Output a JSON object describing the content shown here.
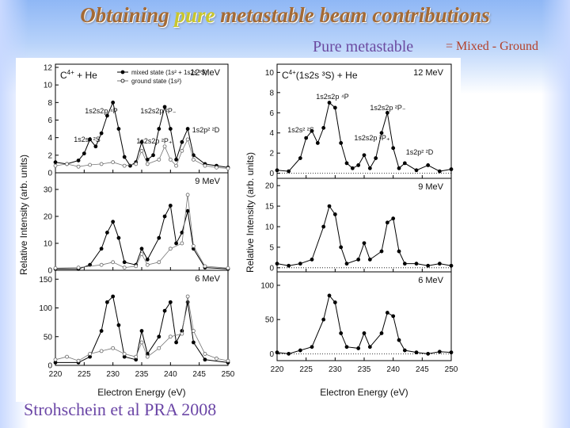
{
  "header": {
    "title_part1": "Obtaining ",
    "title_highlight": "pure",
    "title_part2": " metastable beam contributions",
    "subtitle_left": "Pure metastable",
    "subtitle_right": "= Mixed - Ground"
  },
  "citation": "Strohschein et al PRA 2008",
  "colors": {
    "title": "#a46a35",
    "highlight": "#c9c62c",
    "subtitle": "#6b4aa0",
    "subtitle_right": "#b3402a"
  },
  "chart_data": [
    {
      "type": "line",
      "panel": "left",
      "ylabel": "Relative Intensity (arb. units)",
      "xlabel": "Electron Energy (eV)",
      "xlim": [
        220,
        250
      ],
      "xticks": [
        220,
        225,
        230,
        235,
        240,
        245,
        250
      ],
      "reaction_label": "C",
      "reaction_charge": "4+",
      "reaction_rest": " + He",
      "legend": [
        "mixed state (1s² + 1s2s ³S)",
        "ground state (1s²)"
      ],
      "subplots": [
        {
          "energy_label": "12 MeV",
          "ylim": [
            0,
            12
          ],
          "yticks": [
            0,
            2,
            4,
            6,
            8,
            10,
            12
          ],
          "annotations": [
            "1s2s2p ⁴P",
            "1s2s2p ²P₋",
            "1s2s² ²S",
            "1s2s2p ²P₊",
            "1s2p² ²D"
          ],
          "series": [
            {
              "name": "mixed state (1s² + 1s2s ³S)",
              "x": [
                220,
                222,
                224,
                225,
                226,
                227,
                228,
                229,
                230,
                231,
                232,
                233,
                234,
                235,
                236,
                237,
                238,
                239,
                240,
                241,
                242,
                243,
                244,
                246,
                248,
                250
              ],
              "y": [
                1.2,
                1.0,
                1.4,
                2.2,
                3.8,
                3.0,
                4.5,
                6.5,
                8.0,
                5.0,
                1.8,
                0.8,
                1.2,
                3.5,
                1.5,
                2.0,
                5.0,
                7.5,
                5.0,
                1.5,
                3.5,
                5.0,
                2.0,
                1.0,
                0.8,
                0.6
              ]
            },
            {
              "name": "ground state (1s²)",
              "x": [
                220,
                222,
                224,
                226,
                228,
                230,
                232,
                234,
                235,
                236,
                238,
                239,
                240,
                241,
                242,
                243,
                244,
                246,
                248,
                250
              ],
              "y": [
                0.8,
                1.0,
                0.7,
                0.9,
                1.0,
                1.2,
                0.8,
                1.0,
                2.5,
                1.0,
                1.5,
                3.0,
                1.5,
                0.8,
                2.5,
                3.8,
                1.5,
                0.8,
                0.6,
                0.5
              ]
            }
          ]
        },
        {
          "energy_label": "9 MeV",
          "ylim": [
            0,
            35
          ],
          "yticks": [
            0,
            10,
            20,
            30
          ],
          "series": [
            {
              "name": "mixed state (1s² + 1s2s ³S)",
              "x": [
                220,
                224,
                226,
                228,
                229,
                230,
                231,
                232,
                234,
                235,
                236,
                238,
                239,
                240,
                241,
                242,
                243,
                244,
                246,
                250
              ],
              "y": [
                0.5,
                0.5,
                2,
                8,
                14,
                18,
                12,
                3,
                2,
                8,
                4,
                12,
                20,
                24,
                10,
                14,
                22,
                8,
                1,
                0.5
              ]
            },
            {
              "name": "ground state (1s²)",
              "x": [
                220,
                224,
                228,
                230,
                232,
                234,
                235,
                236,
                238,
                240,
                242,
                243,
                244,
                246,
                250
              ],
              "y": [
                0.8,
                1,
                2,
                3,
                1,
                1.5,
                6,
                2,
                3,
                8,
                10,
                28,
                9,
                1.5,
                0.8
              ]
            }
          ]
        },
        {
          "energy_label": "6 MeV",
          "ylim": [
            0,
            160
          ],
          "yticks": [
            0,
            50,
            100,
            150
          ],
          "series": [
            {
              "name": "mixed state (1s² + 1s2s ³S)",
              "x": [
                220,
                224,
                226,
                228,
                229,
                230,
                231,
                232,
                234,
                235,
                236,
                238,
                239,
                240,
                241,
                242,
                243,
                244,
                246,
                250
              ],
              "y": [
                5,
                5,
                15,
                60,
                110,
                120,
                70,
                15,
                10,
                60,
                20,
                50,
                95,
                110,
                40,
                60,
                110,
                40,
                10,
                5
              ]
            },
            {
              "name": "ground state (1s²)",
              "x": [
                220,
                222,
                224,
                226,
                228,
                230,
                232,
                234,
                235,
                236,
                238,
                240,
                242,
                243,
                244,
                246,
                248,
                250
              ],
              "y": [
                10,
                15,
                8,
                20,
                25,
                30,
                20,
                15,
                40,
                15,
                30,
                50,
                55,
                120,
                60,
                20,
                12,
                8
              ]
            }
          ]
        }
      ]
    },
    {
      "type": "line",
      "panel": "right",
      "ylabel": "Relative Intensity (arb. units)",
      "xlabel": "Electron Energy (eV)",
      "xlim": [
        220,
        250
      ],
      "xticks": [
        220,
        225,
        230,
        235,
        240,
        245,
        250
      ],
      "reaction_label": "C",
      "reaction_charge": "4+",
      "reaction_rest": "(1s2s ³S) + He",
      "subplots": [
        {
          "energy_label": "12 MeV",
          "ylim": [
            -0.5,
            10.5
          ],
          "yticks": [
            0,
            2,
            4,
            6,
            8,
            10
          ],
          "annotations": [
            "1s2s2p ⁴P",
            "1s2s2p ²P₋",
            "1s2s² ²S",
            "1s2s2p ²P₊",
            "1s2p² ²D"
          ],
          "series": [
            {
              "name": "pure metastable",
              "x": [
                220,
                222,
                224,
                225,
                226,
                227,
                228,
                229,
                230,
                231,
                232,
                233,
                234,
                235,
                236,
                237,
                238,
                239,
                240,
                241,
                242,
                244,
                246,
                248,
                250
              ],
              "y": [
                0.3,
                0.2,
                1.5,
                3.5,
                4.2,
                3.0,
                4.5,
                7.0,
                6.5,
                3.0,
                1.0,
                0.5,
                0.8,
                1.8,
                0.5,
                1.5,
                4.0,
                6.0,
                2.5,
                0.5,
                1.0,
                0.3,
                0.8,
                0.2,
                0.4
              ]
            }
          ]
        },
        {
          "energy_label": "9 MeV",
          "ylim": [
            -1,
            21
          ],
          "yticks": [
            0,
            5,
            10,
            15,
            20
          ],
          "series": [
            {
              "name": "pure metastable",
              "x": [
                220,
                222,
                224,
                226,
                228,
                229,
                230,
                231,
                232,
                234,
                235,
                236,
                238,
                239,
                240,
                241,
                242,
                244,
                246,
                248,
                250
              ],
              "y": [
                1,
                0.5,
                1,
                2,
                10,
                15,
                13,
                5,
                1,
                2,
                6,
                2,
                4,
                11,
                12,
                4,
                1,
                1,
                0.5,
                1,
                0.5
              ]
            }
          ]
        },
        {
          "energy_label": "6 MeV",
          "ylim": [
            -10,
            115
          ],
          "yticks": [
            0,
            50,
            100
          ],
          "series": [
            {
              "name": "pure metastable",
              "x": [
                220,
                222,
                224,
                226,
                228,
                229,
                230,
                231,
                232,
                234,
                235,
                236,
                238,
                239,
                240,
                241,
                242,
                244,
                246,
                248,
                250
              ],
              "y": [
                2,
                0,
                5,
                10,
                50,
                85,
                75,
                30,
                10,
                8,
                30,
                10,
                30,
                60,
                55,
                20,
                5,
                2,
                0,
                3,
                2
              ]
            }
          ]
        }
      ]
    }
  ]
}
